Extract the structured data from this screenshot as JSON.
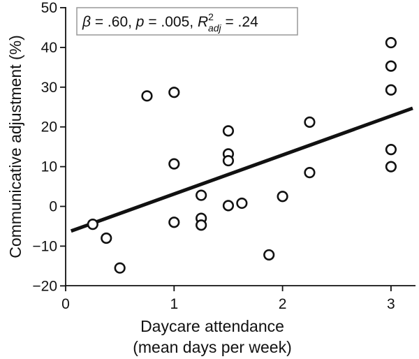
{
  "chart_data": {
    "type": "scatter",
    "title": "",
    "xlabel_line1": "Daycare attendance",
    "xlabel_line2": "(mean days per week)",
    "ylabel": "Communicative adjustment (%)",
    "xlim": [
      0,
      3.25
    ],
    "ylim": [
      -20,
      50
    ],
    "xticks": [
      0,
      1,
      2,
      3
    ],
    "yticks": [
      -20,
      -10,
      0,
      10,
      20,
      30,
      40,
      50
    ],
    "grid": false,
    "annotation": {
      "beta_symbol": "β",
      "beta_value": " = .60, ",
      "p_symbol": "p",
      "p_value": " = .005, ",
      "r_symbol": "R",
      "r_superscript": "2",
      "r_subscript": "adj",
      "r_value": " = .24"
    },
    "points": [
      {
        "x": 0.25,
        "y": -4.5
      },
      {
        "x": 0.375,
        "y": -8
      },
      {
        "x": 0.5,
        "y": -15.5
      },
      {
        "x": 0.75,
        "y": 27.8
      },
      {
        "x": 1.0,
        "y": 28.7
      },
      {
        "x": 1.0,
        "y": 10.7
      },
      {
        "x": 1.0,
        "y": -4
      },
      {
        "x": 1.25,
        "y": 2.8
      },
      {
        "x": 1.25,
        "y": -3
      },
      {
        "x": 1.25,
        "y": -4.7
      },
      {
        "x": 1.5,
        "y": 19
      },
      {
        "x": 1.5,
        "y": 13.2
      },
      {
        "x": 1.5,
        "y": 11.5
      },
      {
        "x": 1.5,
        "y": 0.2
      },
      {
        "x": 1.625,
        "y": 0.8
      },
      {
        "x": 1.875,
        "y": -12.2
      },
      {
        "x": 2.0,
        "y": 2.5
      },
      {
        "x": 2.25,
        "y": 21.2
      },
      {
        "x": 2.25,
        "y": 8.5
      },
      {
        "x": 3.0,
        "y": 41.2
      },
      {
        "x": 3.0,
        "y": 35.3
      },
      {
        "x": 3.0,
        "y": 29.3
      },
      {
        "x": 3.0,
        "y": 14.3
      },
      {
        "x": 3.0,
        "y": 10
      }
    ],
    "regression": {
      "x": [
        0.05,
        3.2
      ],
      "y": [
        -6.2,
        24.7
      ]
    }
  },
  "colors": {
    "ink": "#111111",
    "marker_fill": "#ffffff",
    "box_border": "#999999"
  }
}
